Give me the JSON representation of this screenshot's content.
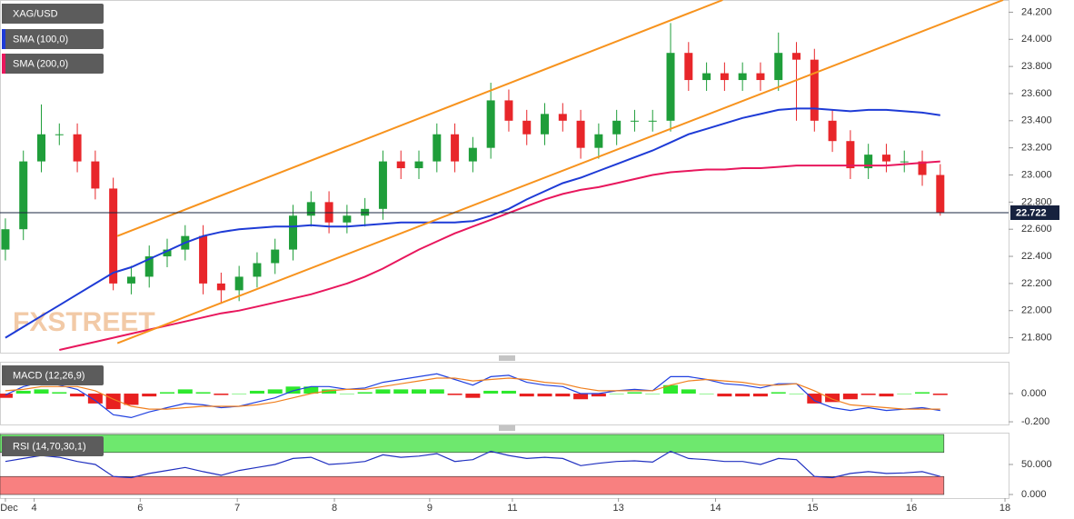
{
  "chart_data": [
    {
      "type": "candlestick",
      "title": "XAG/USD",
      "color": "#5a5a5a",
      "watermark": "FXSTREET",
      "x": [
        0,
        1,
        2,
        3,
        4,
        5,
        6,
        7,
        8,
        9,
        10,
        11,
        12,
        13,
        14,
        15,
        16,
        17,
        18,
        19,
        20,
        21,
        22,
        23,
        24,
        25,
        26,
        27,
        28,
        29,
        30,
        31,
        32,
        33,
        34,
        35,
        36,
        37,
        38,
        39,
        40,
        41,
        42,
        43,
        44,
        45,
        46,
        47,
        48,
        49,
        50,
        51,
        52
      ],
      "open": [
        22.45,
        22.6,
        23.1,
        23.3,
        23.3,
        23.1,
        22.9,
        22.2,
        22.25,
        22.4,
        22.45,
        22.55,
        22.2,
        22.15,
        22.25,
        22.35,
        22.45,
        22.7,
        22.8,
        22.65,
        22.7,
        22.75,
        23.1,
        23.05,
        23.1,
        23.3,
        23.1,
        23.2,
        23.55,
        23.4,
        23.3,
        23.45,
        23.4,
        23.2,
        23.3,
        23.4,
        23.4,
        23.4,
        23.9,
        23.7,
        23.75,
        23.7,
        23.75,
        23.7,
        23.9,
        23.85,
        23.4,
        23.25,
        23.05,
        23.15,
        23.1,
        23.1,
        23.0
      ],
      "high": [
        22.68,
        23.18,
        23.52,
        23.38,
        23.38,
        23.18,
        22.98,
        22.33,
        22.48,
        22.53,
        22.63,
        22.63,
        22.28,
        22.33,
        22.43,
        22.53,
        22.78,
        22.88,
        22.88,
        22.78,
        22.83,
        23.18,
        23.18,
        23.18,
        23.38,
        23.38,
        23.28,
        23.68,
        23.63,
        23.48,
        23.53,
        23.53,
        23.48,
        23.38,
        23.48,
        23.48,
        23.48,
        24.12,
        23.98,
        23.83,
        23.83,
        23.83,
        23.83,
        24.05,
        23.98,
        23.93,
        23.48,
        23.33,
        23.23,
        23.23,
        23.18,
        23.18,
        23.08
      ],
      "low": [
        22.37,
        22.52,
        23.02,
        23.22,
        23.02,
        22.82,
        22.15,
        22.12,
        22.17,
        22.32,
        22.37,
        22.12,
        22.05,
        22.07,
        22.17,
        22.27,
        22.37,
        22.62,
        22.57,
        22.57,
        22.62,
        22.67,
        22.97,
        22.97,
        23.02,
        23.02,
        23.02,
        23.12,
        23.32,
        23.22,
        23.22,
        23.32,
        23.12,
        23.12,
        23.22,
        23.32,
        23.32,
        23.32,
        23.62,
        23.62,
        23.62,
        23.62,
        23.62,
        23.62,
        23.4,
        23.32,
        23.17,
        22.97,
        22.97,
        23.02,
        23.02,
        22.92,
        22.7
      ],
      "close": [
        22.6,
        23.1,
        23.3,
        23.3,
        23.1,
        22.9,
        22.2,
        22.25,
        22.4,
        22.45,
        22.55,
        22.2,
        22.15,
        22.25,
        22.35,
        22.45,
        22.7,
        22.8,
        22.65,
        22.7,
        22.75,
        23.1,
        23.05,
        23.1,
        23.3,
        23.1,
        23.2,
        23.55,
        23.4,
        23.3,
        23.45,
        23.4,
        23.2,
        23.3,
        23.4,
        23.4,
        23.4,
        23.9,
        23.7,
        23.75,
        23.7,
        23.75,
        23.7,
        23.9,
        23.85,
        23.4,
        23.25,
        23.05,
        23.15,
        23.1,
        23.1,
        23.0,
        22.722
      ],
      "up_color": "#1f9e3a",
      "down_color": "#e8262a",
      "series": [
        {
          "name": "SMA (100,0)",
          "color": "#1e3bd6",
          "values": [
            21.8,
            21.88,
            21.96,
            22.04,
            22.12,
            22.2,
            22.28,
            22.32,
            22.38,
            22.44,
            22.5,
            22.55,
            22.58,
            22.6,
            22.61,
            22.62,
            22.62,
            22.63,
            22.62,
            22.62,
            22.63,
            22.64,
            22.65,
            22.65,
            22.65,
            22.65,
            22.66,
            22.7,
            22.75,
            22.82,
            22.88,
            22.94,
            22.98,
            23.03,
            23.08,
            23.13,
            23.18,
            23.24,
            23.3,
            23.34,
            23.38,
            23.42,
            23.45,
            23.48,
            23.49,
            23.49,
            23.48,
            23.47,
            23.48,
            23.48,
            23.47,
            23.46,
            23.44
          ]
        },
        {
          "name": "SMA (200,0)",
          "color": "#e8175d",
          "values": [
            null,
            null,
            null,
            21.71,
            21.74,
            21.77,
            21.8,
            21.83,
            21.86,
            21.89,
            21.92,
            21.95,
            21.98,
            22.0,
            22.03,
            22.06,
            22.09,
            22.12,
            22.16,
            22.2,
            22.25,
            22.31,
            22.38,
            22.45,
            22.51,
            22.57,
            22.62,
            22.67,
            22.72,
            22.77,
            22.82,
            22.86,
            22.89,
            22.91,
            22.94,
            22.97,
            23.0,
            23.02,
            23.03,
            23.04,
            23.04,
            23.05,
            23.05,
            23.06,
            23.07,
            23.07,
            23.07,
            23.07,
            23.07,
            23.07,
            23.08,
            23.09,
            23.1
          ]
        }
      ],
      "trendlines": [
        {
          "x": [
            6.23,
            39.9
          ],
          "y": [
            22.55,
            24.29
          ],
          "color": "#f7931e"
        },
        {
          "x": [
            6.23,
            55.5
          ],
          "y": [
            21.76,
            24.29
          ],
          "color": "#f7931e"
        }
      ],
      "last": {
        "value": 22.722,
        "label": "22.722"
      },
      "ylim": [
        21.69,
        24.29
      ],
      "yticks": [
        {
          "value": 21.8,
          "label": "21.800"
        },
        {
          "value": 22.0,
          "label": "22.000"
        },
        {
          "value": 22.2,
          "label": "22.200"
        },
        {
          "value": 22.4,
          "label": "22.400"
        },
        {
          "value": 22.6,
          "label": "22.600"
        },
        {
          "value": 22.8,
          "label": "22.800"
        },
        {
          "value": 23.0,
          "label": "23.000"
        },
        {
          "value": 23.2,
          "label": "23.200"
        },
        {
          "value": 23.4,
          "label": "23.400"
        },
        {
          "value": 23.6,
          "label": "23.600"
        },
        {
          "value": 23.8,
          "label": "23.800"
        },
        {
          "value": 24.0,
          "label": "24.000"
        },
        {
          "value": 24.2,
          "label": "24.200"
        }
      ]
    },
    {
      "type": "macd",
      "title": "MACD (12,26,9)",
      "color": "#5a5a5a",
      "series": [
        {
          "color": "#2040e0",
          "values": [
            -0.01,
            0.05,
            0.08,
            0.06,
            0.03,
            -0.05,
            -0.15,
            -0.17,
            -0.13,
            -0.1,
            -0.07,
            -0.08,
            -0.1,
            -0.09,
            -0.06,
            -0.03,
            0.02,
            0.05,
            0.05,
            0.03,
            0.04,
            0.08,
            0.1,
            0.12,
            0.14,
            0.1,
            0.06,
            0.12,
            0.13,
            0.08,
            0.06,
            0.05,
            0.0,
            0.0,
            0.02,
            0.03,
            0.02,
            0.12,
            0.12,
            0.1,
            0.07,
            0.06,
            0.04,
            0.07,
            0.07,
            -0.05,
            -0.1,
            -0.12,
            -0.1,
            -0.12,
            -0.11,
            -0.1,
            -0.12
          ]
        },
        {
          "color": "#f08020",
          "values": [
            0.02,
            0.03,
            0.05,
            0.05,
            0.05,
            0.02,
            -0.04,
            -0.09,
            -0.11,
            -0.11,
            -0.1,
            -0.09,
            -0.09,
            -0.09,
            -0.08,
            -0.06,
            -0.03,
            0.0,
            0.02,
            0.03,
            0.03,
            0.05,
            0.07,
            0.09,
            0.11,
            0.11,
            0.09,
            0.1,
            0.11,
            0.1,
            0.08,
            0.07,
            0.04,
            0.02,
            0.02,
            0.02,
            0.02,
            0.06,
            0.09,
            0.1,
            0.09,
            0.08,
            0.06,
            0.06,
            0.07,
            0.02,
            -0.04,
            -0.08,
            -0.09,
            -0.1,
            -0.11,
            -0.11,
            -0.11
          ]
        }
      ],
      "histogram": {
        "up_color": "#2ee82e",
        "down_color": "#e82020",
        "values": [
          -0.03,
          0.02,
          0.03,
          0.01,
          -0.02,
          -0.07,
          -0.11,
          -0.08,
          -0.02,
          0.01,
          0.03,
          0.01,
          -0.01,
          0.0,
          0.02,
          0.03,
          0.05,
          0.05,
          0.03,
          0.0,
          0.01,
          0.03,
          0.03,
          0.03,
          0.03,
          -0.01,
          -0.03,
          0.02,
          0.02,
          -0.02,
          -0.02,
          -0.02,
          -0.04,
          -0.02,
          0.0,
          0.01,
          0.0,
          0.06,
          0.03,
          0.0,
          -0.02,
          -0.02,
          -0.02,
          0.01,
          0.0,
          -0.07,
          -0.06,
          -0.04,
          -0.01,
          -0.02,
          0.0,
          0.01,
          -0.01
        ]
      },
      "ylim": [
        -0.219,
        0.226
      ],
      "yticks": [
        {
          "value": 0,
          "label": "0.000"
        },
        {
          "value": -0.2,
          "label": "-0.200"
        }
      ]
    },
    {
      "type": "rsi",
      "title": "RSI (14,70,30,1)",
      "color": "#5a5a5a",
      "series": [
        {
          "color": "#2030c0",
          "values": [
            55,
            60,
            65,
            62,
            55,
            50,
            30,
            28,
            35,
            40,
            45,
            38,
            32,
            40,
            45,
            50,
            60,
            62,
            50,
            52,
            55,
            66,
            62,
            64,
            68,
            55,
            58,
            72,
            65,
            60,
            62,
            60,
            48,
            52,
            55,
            56,
            54,
            72,
            60,
            58,
            55,
            55,
            50,
            60,
            58,
            30,
            28,
            35,
            38,
            35,
            36,
            38,
            30
          ]
        }
      ],
      "bands": [
        {
          "from": 70,
          "to": 100,
          "color": "#6ee86e"
        },
        {
          "from": 0,
          "to": 30,
          "color": "#f88080"
        }
      ],
      "ylim": [
        -6,
        103
      ],
      "yticks": [
        {
          "value": 50,
          "label": "50.000"
        },
        {
          "value": 0,
          "label": "0.000"
        }
      ],
      "xlim": [
        -0.3,
        55.8
      ],
      "xticks": [
        {
          "value": 0,
          "label": "Dec"
        },
        {
          "value": 1.6,
          "label": "4"
        },
        {
          "value": 7.5,
          "label": "6"
        },
        {
          "value": 12.9,
          "label": "7"
        },
        {
          "value": 18.3,
          "label": "8"
        },
        {
          "value": 23.6,
          "label": "9"
        },
        {
          "value": 28.2,
          "label": "11"
        },
        {
          "value": 34.1,
          "label": "13"
        },
        {
          "value": 39.5,
          "label": "14"
        },
        {
          "value": 44.9,
          "label": "15"
        },
        {
          "value": 50.4,
          "label": "16"
        },
        {
          "value": 55.6,
          "label": "18"
        }
      ]
    }
  ]
}
